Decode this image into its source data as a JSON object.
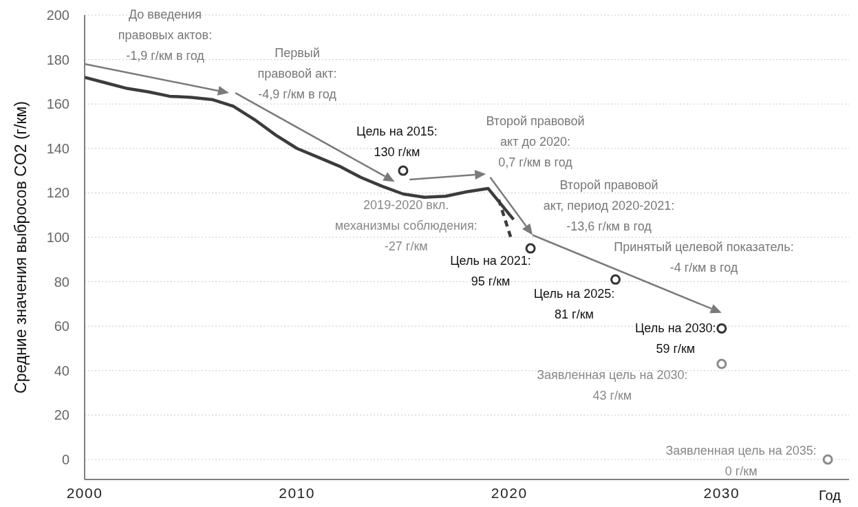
{
  "chart_data": {
    "type": "line",
    "xlabel": "Год",
    "ylabel": "Средние значения выбросов CO2 (г/км)",
    "xlim": [
      2000,
      2036
    ],
    "xticks": [
      2000,
      2010,
      2020,
      2030
    ],
    "ylim": [
      -9,
      200
    ],
    "yticks": [
      0,
      20,
      40,
      60,
      80,
      100,
      120,
      140,
      160,
      180,
      200
    ],
    "grid": "y",
    "series": [
      {
        "color": "#3c3c3c",
        "marker": "none",
        "line_style": "solid",
        "x": [
          2000,
          2001,
          2002,
          2003,
          2004,
          2005,
          2006,
          2007,
          2008,
          2009,
          2010,
          2011,
          2012,
          2013,
          2014,
          2015,
          2016,
          2017,
          2018,
          2019,
          2020.2
        ],
        "values": [
          172,
          169.5,
          167,
          165.5,
          163.5,
          163,
          162,
          159,
          153,
          146,
          140,
          136,
          132,
          127,
          123,
          119.5,
          118,
          118.5,
          120.5,
          122,
          108
        ]
      },
      {
        "color": "#3c3c3c",
        "marker": "none",
        "line_style": "dashed",
        "x": [
          2019.5,
          2020.1
        ],
        "values": [
          117,
          99
        ]
      },
      {
        "type": "scatter",
        "color": "#333333",
        "marker": "circle",
        "x": [
          2015,
          2021,
          2025,
          2030
        ],
        "values": [
          130,
          95,
          81,
          59
        ]
      },
      {
        "type": "scatter",
        "color": "#8a8a8a",
        "marker": "circle",
        "x": [
          2030,
          2035
        ],
        "values": [
          43,
          0
        ]
      }
    ],
    "annotations": [
      "До введения\nправовых актов:\n-1,9 г/км в год",
      "Первый\nправовой акт:\n-4,9 г/км в год",
      {
        "text": "Цель на 2015:\n130 г/км",
        "x": 2015,
        "y": 130
      },
      "Второй правовой\nакт до 2020:\n0,7 г/км в год",
      {
        "text": "2019-2020 вкл.\nмеханизмы соблюдения:\n-27 г/км",
        "x": 2020,
        "y": 104
      },
      "Второй правовой\nакт, период 2020-2021:\n-13,6 г/км в год",
      {
        "text": "Цель на 2021:\n95 г/км",
        "x": 2021,
        "y": 95
      },
      "Принятый целевой показатель:\n-4 г/км в год",
      {
        "text": "Цель на 2025:\n81 г/км",
        "x": 2025,
        "y": 81
      },
      {
        "text": "Цель на 2030:\n59 г/км",
        "x": 2030,
        "y": 59
      },
      {
        "text": "Заявленная цель на 2030:\n43 г/км",
        "x": 2030,
        "y": 43
      },
      {
        "text": "Заявленная цель на 2035:\n0 г/км",
        "x": 2035,
        "y": 0
      }
    ]
  }
}
